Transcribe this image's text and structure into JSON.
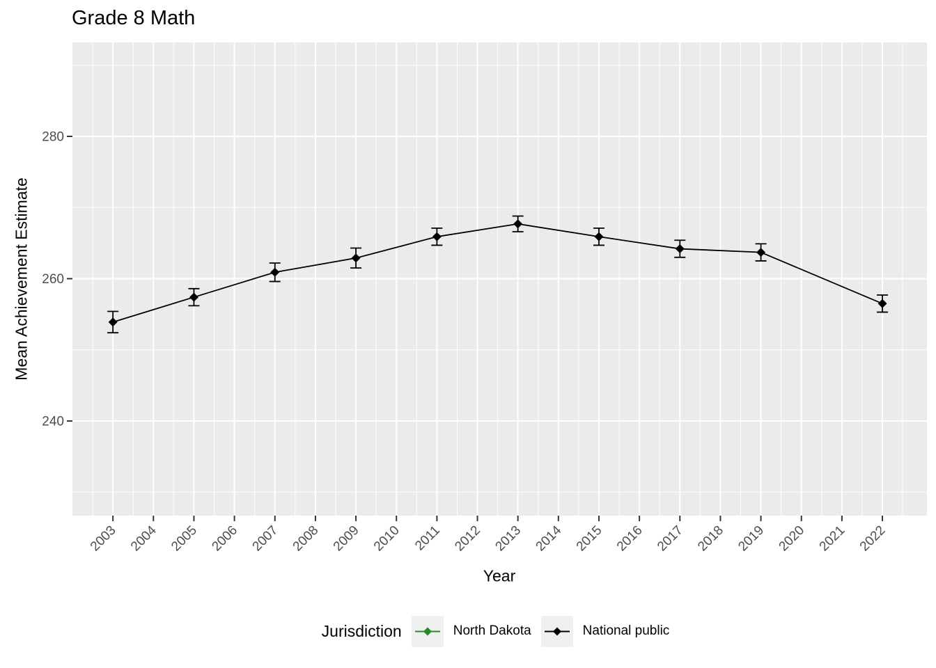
{
  "chart_data": {
    "type": "line",
    "title": "Grade 8 Math",
    "xlabel": "Year",
    "ylabel": "Mean Achievement Estimate",
    "legend_title": "Jurisdiction",
    "legend_position": "bottom",
    "grid": true,
    "panel_bg": "#EBEBEB",
    "grid_color": "#FFFFFF",
    "tick_color": "#333333",
    "tick_label_color": "#4D4D4D",
    "x_tick_labels": [
      "2003",
      "2004",
      "2005",
      "2006",
      "2007",
      "2008",
      "2009",
      "2010",
      "2011",
      "2012",
      "2013",
      "2014",
      "2015",
      "2016",
      "2017",
      "2018",
      "2019",
      "2020",
      "2021",
      "2022"
    ],
    "yticks": [
      240,
      260,
      280
    ],
    "minor_yticks": [
      230,
      250,
      270,
      290
    ],
    "xlim": [
      2002.0,
      2023.1
    ],
    "ylim": [
      226.7,
      293.2
    ],
    "series": [
      {
        "name": "North Dakota",
        "color": "#228B22",
        "x": [],
        "values": [],
        "moe": []
      },
      {
        "name": "National public",
        "color": "#000000",
        "x": [
          2003,
          2005,
          2007,
          2009,
          2011,
          2013,
          2015,
          2017,
          2019,
          2022
        ],
        "values": [
          253.9,
          257.4,
          260.9,
          262.9,
          265.9,
          267.7,
          265.9,
          264.2,
          263.7,
          256.5
        ],
        "moe": [
          1.5,
          1.2,
          1.3,
          1.4,
          1.2,
          1.1,
          1.2,
          1.2,
          1.2,
          1.2
        ]
      }
    ]
  }
}
